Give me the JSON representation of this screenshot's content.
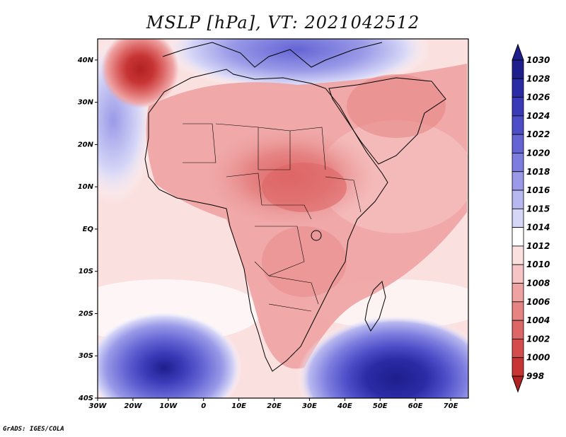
{
  "title": "MSLP [hPa], VT: 2021042512",
  "footer": "GrADS: IGES/COLA",
  "map": {
    "lon_range": [
      -30,
      75
    ],
    "lat_range": [
      -40,
      45
    ],
    "x_ticks": [
      {
        "lon": -30,
        "label": "30W"
      },
      {
        "lon": -20,
        "label": "20W"
      },
      {
        "lon": -10,
        "label": "10W"
      },
      {
        "lon": 0,
        "label": "0"
      },
      {
        "lon": 10,
        "label": "10E"
      },
      {
        "lon": 20,
        "label": "20E"
      },
      {
        "lon": 30,
        "label": "30E"
      },
      {
        "lon": 40,
        "label": "40E"
      },
      {
        "lon": 50,
        "label": "50E"
      },
      {
        "lon": 60,
        "label": "60E"
      },
      {
        "lon": 70,
        "label": "70E"
      }
    ],
    "y_ticks": [
      {
        "lat": 40,
        "label": "40N"
      },
      {
        "lat": 30,
        "label": "30N"
      },
      {
        "lat": 20,
        "label": "20N"
      },
      {
        "lat": 10,
        "label": "10N"
      },
      {
        "lat": 0,
        "label": "EQ"
      },
      {
        "lat": -10,
        "label": "10S"
      },
      {
        "lat": -20,
        "label": "20S"
      },
      {
        "lat": -30,
        "label": "30S"
      },
      {
        "lat": -40,
        "label": "40S"
      }
    ]
  },
  "colorbar": {
    "levels": [
      "1030",
      "1028",
      "1026",
      "1024",
      "1022",
      "1020",
      "1018",
      "1016",
      "1015",
      "1014",
      "1012",
      "1010",
      "1008",
      "1006",
      "1004",
      "1002",
      "1000",
      "998"
    ],
    "colors": [
      "#1e1e8c",
      "#2b2ba6",
      "#3a3ab8",
      "#4d4dc8",
      "#6464d4",
      "#7d7ddf",
      "#9a9ae8",
      "#b8b8f0",
      "#d6d6f7",
      "#ffffff",
      "#fbe0e0",
      "#f6c4c4",
      "#eea2a2",
      "#e68484",
      "#dd6666",
      "#d44c4c",
      "#c73434",
      "#b22222"
    ]
  }
}
